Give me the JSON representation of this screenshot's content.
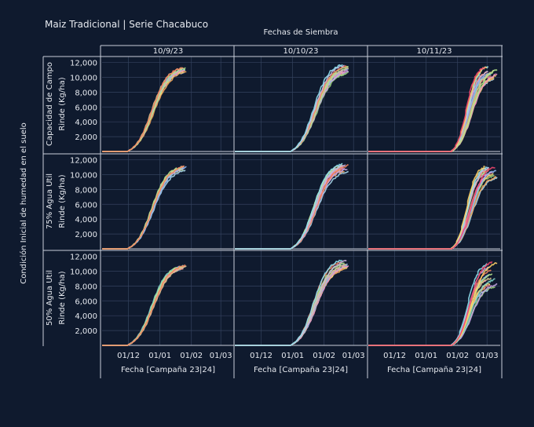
{
  "title": "Maiz Tradicional | Serie Chacabuco",
  "column_group_title": "Fechas de Siembra",
  "row_group_title": "Condición Inicial de humedad en el suelo",
  "colors": {
    "background": "#0f1a2e",
    "grid": "#34425e",
    "text": "#e6e9ef"
  },
  "chart_data": {
    "type": "line",
    "facet_columns": [
      "10/9/23",
      "10/10/23",
      "10/11/23"
    ],
    "facet_rows": [
      "Capacidad de Campo",
      "75% Agua Util",
      "50% Agua Util"
    ],
    "xlabel": "Fecha [Campaña 23|24]",
    "ylabel": "Rinde (Kg/ha)",
    "xticks": [
      "01/12",
      "01/01",
      "01/02",
      "01/03"
    ],
    "yticks": [
      2000,
      4000,
      6000,
      8000,
      10000,
      12000
    ],
    "ytick_labels": [
      "2,000",
      "4,000",
      "6,000",
      "8,000",
      "10,000",
      "12,000"
    ],
    "x_range": [
      "2023-11-05",
      "2024-03-14"
    ],
    "ylim": [
      0,
      12800
    ],
    "grid": true,
    "panels": [
      {
        "row": 0,
        "col": 0,
        "start": "2023-11-30",
        "end": [
          "2024-01-22",
          "2024-01-28"
        ],
        "final_yield": [
          10700,
          11400
        ],
        "n_series": 12
      },
      {
        "row": 0,
        "col": 1,
        "start": "2023-12-30",
        "end": [
          "2024-02-17",
          "2024-02-26"
        ],
        "final_yield": [
          10500,
          11800
        ],
        "n_series": 14
      },
      {
        "row": 0,
        "col": 2,
        "start": "2024-01-26",
        "end": [
          "2024-02-28",
          "2024-03-12"
        ],
        "final_yield": [
          9800,
          11700
        ],
        "n_series": 16
      },
      {
        "row": 1,
        "col": 0,
        "start": "2023-11-30",
        "end": [
          "2024-01-22",
          "2024-01-28"
        ],
        "final_yield": [
          10600,
          11300
        ],
        "n_series": 12
      },
      {
        "row": 1,
        "col": 1,
        "start": "2023-12-30",
        "end": [
          "2024-02-17",
          "2024-02-26"
        ],
        "final_yield": [
          10400,
          11800
        ],
        "n_series": 14
      },
      {
        "row": 1,
        "col": 2,
        "start": "2024-01-26",
        "end": [
          "2024-02-28",
          "2024-03-12"
        ],
        "final_yield": [
          9600,
          11700
        ],
        "n_series": 16
      },
      {
        "row": 2,
        "col": 0,
        "start": "2023-11-30",
        "end": [
          "2024-01-22",
          "2024-01-28"
        ],
        "final_yield": [
          10300,
          10900
        ],
        "n_series": 12
      },
      {
        "row": 2,
        "col": 1,
        "start": "2023-12-30",
        "end": [
          "2024-02-17",
          "2024-02-26"
        ],
        "final_yield": [
          10200,
          11600
        ],
        "n_series": 14
      },
      {
        "row": 2,
        "col": 2,
        "start": "2024-01-26",
        "end": [
          "2024-02-28",
          "2024-03-12"
        ],
        "final_yield": [
          7400,
          11500
        ],
        "n_series": 16
      }
    ],
    "series_colors": [
      "#a9d6ea",
      "#f2a65a",
      "#9bd17c",
      "#e07a7a",
      "#c9a7e8",
      "#f7d774",
      "#7fd3c7",
      "#f08fc0",
      "#8fb6f2",
      "#d9c08a",
      "#b5e48c",
      "#f4845f",
      "#cdb4db",
      "#90e0ef",
      "#ffd166",
      "#ef476f"
    ]
  }
}
